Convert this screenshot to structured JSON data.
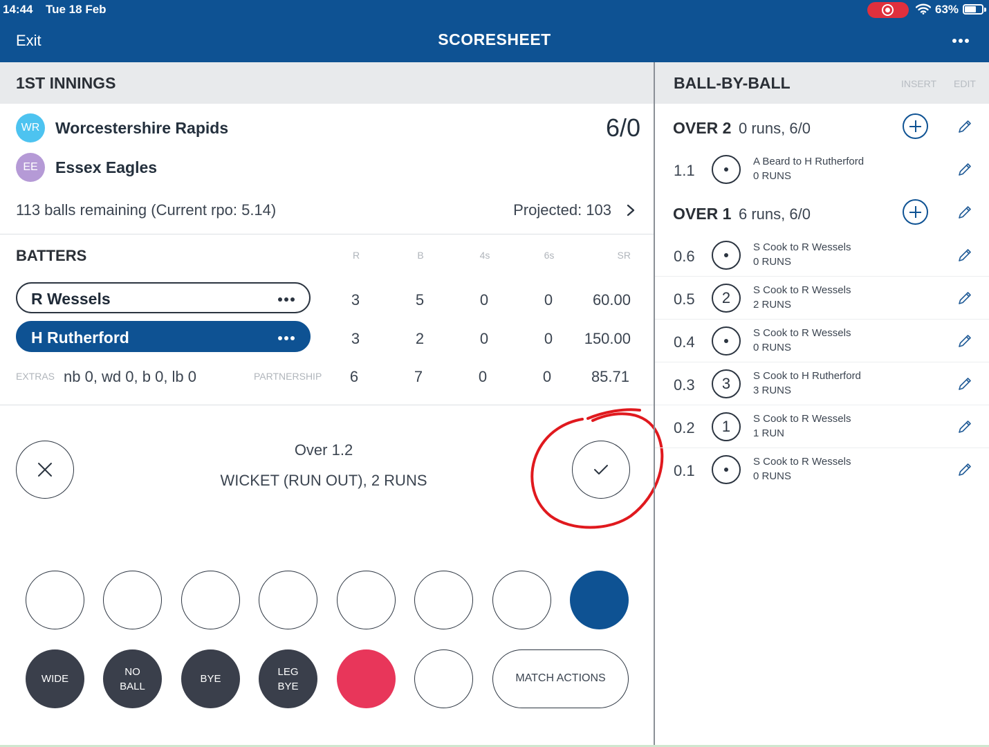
{
  "status_bar": {
    "time": "14:44",
    "date": "Tue 18 Feb",
    "battery": "63%"
  },
  "nav": {
    "exit_label": "Exit",
    "title": "SCORESHEET"
  },
  "innings": {
    "title": "1ST INNINGS",
    "teams": [
      {
        "initials": "WR",
        "name": "Worcestershire Rapids",
        "badge_color": "#4dc3f0"
      },
      {
        "initials": "EE",
        "name": "Essex Eagles",
        "badge_color": "#b59ad6"
      }
    ],
    "score": "6/0",
    "balls_remaining": "113 balls remaining (Current rpo: 5.14)",
    "projected": "Projected: 103"
  },
  "batters": {
    "title": "BATTERS",
    "columns": [
      "R",
      "B",
      "4s",
      "6s",
      "SR"
    ],
    "rows": [
      {
        "name": "R Wessels",
        "active": false,
        "r": "3",
        "b": "5",
        "fours": "0",
        "sixes": "0",
        "sr": "60.00"
      },
      {
        "name": "H Rutherford",
        "active": true,
        "r": "3",
        "b": "2",
        "fours": "0",
        "sixes": "0",
        "sr": "150.00"
      }
    ],
    "extras_label": "EXTRAS",
    "extras": "nb 0, wd 0, b 0, lb 0",
    "partnership_label": "PARTNERSHIP",
    "partnership": {
      "r": "6",
      "b": "7",
      "fours": "0",
      "sixes": "0",
      "sr": "85.71"
    }
  },
  "delivery": {
    "over": "Over 1.2",
    "summary": "WICKET (RUN OUT), 2 RUNS"
  },
  "keypad": {
    "extras": [
      {
        "line1": "WIDE",
        "line2": ""
      },
      {
        "line1": "NO",
        "line2": "BALL"
      },
      {
        "line1": "BYE",
        "line2": ""
      },
      {
        "line1": "LEG",
        "line2": "BYE"
      }
    ],
    "match_actions": "MATCH ACTIONS",
    "accent_blue": "#0e5293",
    "accent_red": "#e8365a"
  },
  "ball_by_ball": {
    "title": "BALL-BY-BALL",
    "insert_label": "INSERT",
    "edit_label": "EDIT",
    "overs": [
      {
        "label": "OVER 2",
        "summary": "0 runs, 6/0",
        "balls": [
          {
            "no": "1.1",
            "result": "",
            "desc": "A Beard to H Rutherford",
            "runs": "0 RUNS"
          }
        ]
      },
      {
        "label": "OVER 1",
        "summary": "6 runs, 6/0",
        "balls": [
          {
            "no": "0.6",
            "result": "",
            "desc": "S Cook to R Wessels",
            "runs": "0 RUNS"
          },
          {
            "no": "0.5",
            "result": "2",
            "desc": "S Cook to R Wessels",
            "runs": "2 RUNS"
          },
          {
            "no": "0.4",
            "result": "",
            "desc": "S Cook to R Wessels",
            "runs": "0 RUNS"
          },
          {
            "no": "0.3",
            "result": "3",
            "desc": "S Cook to H Rutherford",
            "runs": "3 RUNS"
          },
          {
            "no": "0.2",
            "result": "1",
            "desc": "S Cook to R Wessels",
            "runs": "1 RUN"
          },
          {
            "no": "0.1",
            "result": "",
            "desc": "S Cook to R Wessels",
            "runs": "0 RUNS"
          }
        ]
      }
    ]
  }
}
